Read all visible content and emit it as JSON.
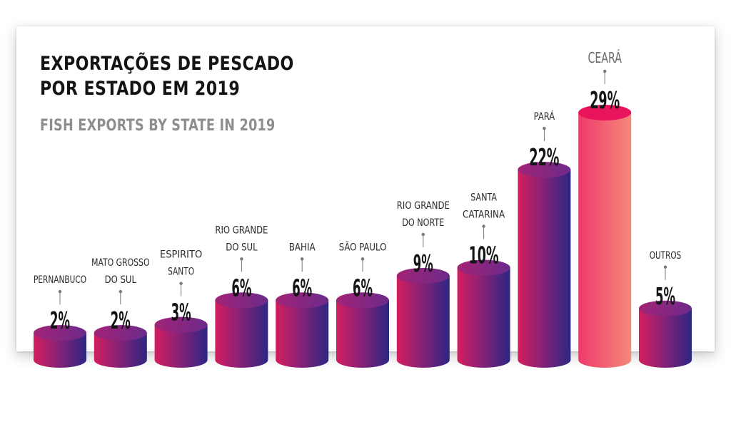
{
  "header": {
    "title_line1": "EXPORTAÇÕES DE PESCADO",
    "title_line2": "POR ESTADO EM 2019",
    "subtitle": "FISH EXPORTS BY STATE IN 2019"
  },
  "colors": {
    "bar_left": "#d41e5e",
    "bar_right": "#2c2682",
    "bar_top": "#a22377",
    "highlight_left": "#ee3a6a",
    "highlight_right": "#f5897b",
    "highlight_top": "#e8145d",
    "leader": "#777777"
  },
  "chart_data": {
    "type": "bar",
    "title": "EXPORTAÇÕES DE PESCADO POR ESTADO EM 2019",
    "subtitle": "FISH EXPORTS BY STATE IN 2019",
    "unit": "%",
    "categories": [
      [
        "PERNANBUCO"
      ],
      [
        "MATO GROSSO",
        "DO SUL"
      ],
      [
        "ESPIRITO",
        "SANTO"
      ],
      [
        "RIO GRANDE",
        "DO SUL"
      ],
      [
        "BAHIA"
      ],
      [
        "SÃO PAULO"
      ],
      [
        "RIO GRANDE",
        "DO NORTE"
      ],
      [
        "SANTA",
        "CATARINA"
      ],
      [
        "PARÁ"
      ],
      [
        "CEARÁ"
      ],
      [
        "OUTROS"
      ]
    ],
    "values": [
      2,
      2,
      3,
      6,
      6,
      6,
      9,
      10,
      22,
      29,
      5
    ],
    "value_labels": [
      "2%",
      "2%",
      "3%",
      "6%",
      "6%",
      "6%",
      "9%",
      "10%",
      "22%",
      "29%",
      "5%"
    ],
    "highlight_index": 9,
    "style": "3d-cylinder"
  }
}
